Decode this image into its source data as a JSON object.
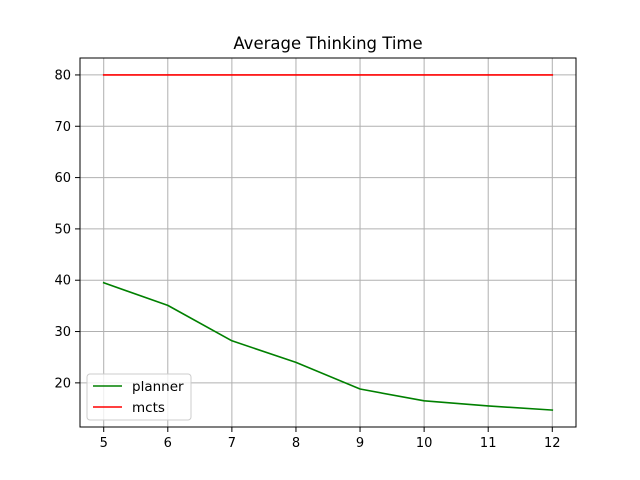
{
  "chart_data": {
    "type": "line",
    "title": "Average Thinking Time",
    "xlabel": "",
    "ylabel": "",
    "x": [
      5,
      6,
      7,
      8,
      9,
      10,
      11,
      12
    ],
    "series": [
      {
        "name": "planner",
        "color": "#008000",
        "values": [
          39.5,
          35.1,
          28.2,
          24.0,
          18.8,
          16.5,
          15.5,
          14.7
        ]
      },
      {
        "name": "mcts",
        "color": "#ff0000",
        "values": [
          80,
          80,
          80,
          80,
          80,
          80,
          80,
          80
        ]
      }
    ],
    "xlim": [
      4.63,
      12.37
    ],
    "ylim": [
      11.4,
      83.3
    ],
    "xticks": [
      5,
      6,
      7,
      8,
      9,
      10,
      11,
      12
    ],
    "yticks": [
      20,
      30,
      40,
      50,
      60,
      70,
      80
    ],
    "grid": true,
    "legend_position": "lower-left"
  }
}
